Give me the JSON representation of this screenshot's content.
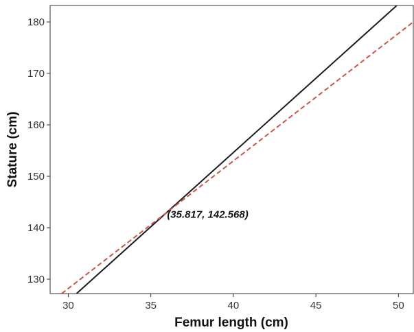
{
  "chart_data": {
    "type": "line",
    "xlabel": "Femur length (cm)",
    "ylabel": "Stature (cm)",
    "xlim": [
      28.9,
      50.9
    ],
    "ylim": [
      127.2,
      183.2
    ],
    "xticks": [
      30,
      35,
      40,
      45,
      50
    ],
    "yticks": [
      130,
      140,
      150,
      160,
      170,
      180
    ],
    "grid": false,
    "series": [
      {
        "style": "solid",
        "color": "#1a1a1a",
        "x": [
          30.5,
          49.9
        ],
        "y": [
          127.2,
          183.2
        ]
      },
      {
        "style": "dashed",
        "color": "#cc5544",
        "x": [
          29.6,
          50.9
        ],
        "y": [
          127.2,
          180.0
        ]
      }
    ],
    "annotations": [
      {
        "text": "(35.817, 142.568)",
        "x": 35.817,
        "y": 142.568
      }
    ]
  }
}
